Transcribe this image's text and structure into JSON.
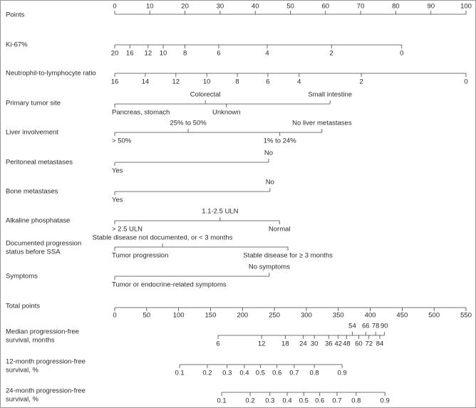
{
  "nomogram": {
    "points_axis": {
      "label": "Points",
      "lim": [
        0,
        100
      ],
      "ticks": [
        0,
        10,
        20,
        30,
        40,
        50,
        60,
        70,
        80,
        90,
        100
      ]
    },
    "rows": [
      {
        "label": [
          "Ki-67%"
        ],
        "ticks": [
          {
            "points": 0,
            "label": "20",
            "side": "below"
          },
          {
            "points": 4.3,
            "label": "16",
            "side": "below"
          },
          {
            "points": 9.5,
            "label": "12",
            "side": "below"
          },
          {
            "points": 13.8,
            "label": "10",
            "side": "below"
          },
          {
            "points": 20,
            "label": "8",
            "side": "below"
          },
          {
            "points": 29.6,
            "label": "6",
            "side": "below"
          },
          {
            "points": 43.4,
            "label": "4",
            "side": "below"
          },
          {
            "points": 61.7,
            "label": "2",
            "side": "below"
          },
          {
            "points": 81.7,
            "label": "0",
            "side": "below"
          }
        ]
      },
      {
        "label": [
          "Neutrophil-to-lymphocyte ratio"
        ],
        "ticks": [
          {
            "points": 0,
            "label": "16",
            "side": "below"
          },
          {
            "points": 8.7,
            "label": "14",
            "side": "below"
          },
          {
            "points": 17.4,
            "label": "12",
            "side": "below"
          },
          {
            "points": 26.2,
            "label": "10",
            "side": "below"
          },
          {
            "points": 34.9,
            "label": "8",
            "side": "below"
          },
          {
            "points": 43.6,
            "label": "6",
            "side": "below"
          },
          {
            "points": 52.5,
            "label": "4",
            "side": "below"
          },
          {
            "points": 70.2,
            "label": "2",
            "side": "below"
          },
          {
            "points": 100,
            "label": "0",
            "side": "below"
          }
        ]
      },
      {
        "label": [
          "Primary tumor site"
        ],
        "ticks": [
          {
            "points": 0,
            "label": "Pancreas, stomach",
            "side": "below"
          },
          {
            "points": 25.8,
            "label": "Colorectal",
            "side": "above"
          },
          {
            "points": 31.8,
            "label": "Unknown",
            "side": "below"
          },
          {
            "points": 61.3,
            "label": "Small intestine",
            "side": "above"
          }
        ]
      },
      {
        "label": [
          "Liver involvement"
        ],
        "ticks": [
          {
            "points": 0,
            "label": "> 50%",
            "side": "below"
          },
          {
            "points": 20.9,
            "label": "25% to 50%",
            "side": "above"
          },
          {
            "points": 47,
            "label": "1% to 24%",
            "side": "below"
          },
          {
            "points": 59,
            "label": "No liver metastases",
            "side": "above"
          }
        ]
      },
      {
        "label": [
          "Peritoneal metastases"
        ],
        "ticks": [
          {
            "points": 0,
            "label": "Yes",
            "side": "below"
          },
          {
            "points": 43.8,
            "label": "No",
            "side": "above"
          }
        ]
      },
      {
        "label": [
          "Bone metastases"
        ],
        "ticks": [
          {
            "points": 0,
            "label": "Yes",
            "side": "below"
          },
          {
            "points": 44.2,
            "label": "No",
            "side": "above"
          }
        ]
      },
      {
        "label": [
          "Alkaline phosphatase"
        ],
        "ticks": [
          {
            "points": 0,
            "label": "> 2.5 ULN",
            "side": "below"
          },
          {
            "points": 30,
            "label": "1.1-2.5 ULN",
            "side": "above"
          },
          {
            "points": 46.9,
            "label": "Normal",
            "side": "below"
          }
        ]
      },
      {
        "label": [
          "Documented progression",
          "status before SSA"
        ],
        "ticks": [
          {
            "points": 0,
            "label": "Tumor progression",
            "side": "below"
          },
          {
            "points": 13.6,
            "label": "Stable disease not documented, or < 3 months",
            "side": "above"
          },
          {
            "points": 49.3,
            "label": "Stable disease for ≥ 3 months",
            "side": "below"
          }
        ]
      },
      {
        "label": [
          "Symptoms"
        ],
        "ticks": [
          {
            "points": 0,
            "label": "Tumor or endocrine-related symptoms",
            "side": "below"
          },
          {
            "points": 44,
            "label": "No symptoms",
            "side": "above"
          }
        ]
      }
    ],
    "total_axis": {
      "label": "Total points",
      "lim": [
        0,
        550
      ],
      "ticks": [
        0,
        50,
        100,
        150,
        200,
        250,
        300,
        350,
        400,
        450,
        500,
        550
      ]
    },
    "outcomes": [
      {
        "label": [
          "Median progression-free",
          "survival, months"
        ],
        "ticks": [
          {
            "total": 161.8,
            "label": "6",
            "side": "below"
          },
          {
            "total": 230,
            "label": "12",
            "side": "below"
          },
          {
            "total": 267,
            "label": "18",
            "side": "below"
          },
          {
            "total": 295,
            "label": "24",
            "side": "below"
          },
          {
            "total": 312.5,
            "label": "30",
            "side": "below"
          },
          {
            "total": 335,
            "label": "36",
            "side": "below"
          },
          {
            "total": 350,
            "label": "42",
            "side": "below"
          },
          {
            "total": 363,
            "label": "48",
            "side": "below"
          },
          {
            "total": 372,
            "label": "54",
            "side": "above"
          },
          {
            "total": 382,
            "label": "60",
            "side": "below"
          },
          {
            "total": 393,
            "label": "66",
            "side": "above"
          },
          {
            "total": 398,
            "label": "72",
            "side": "below"
          },
          {
            "total": 408.5,
            "label": "78",
            "side": "above"
          },
          {
            "total": 415,
            "label": "84",
            "side": "below"
          },
          {
            "total": 422,
            "label": "90",
            "side": "above"
          }
        ]
      },
      {
        "label": [
          "12-month progression-free",
          "survival, %"
        ],
        "ticks": [
          {
            "total": 101.6,
            "label": "0.1",
            "side": "below"
          },
          {
            "total": 145,
            "label": "0.2",
            "side": "below"
          },
          {
            "total": 176,
            "label": "0.3",
            "side": "below"
          },
          {
            "total": 203,
            "label": "0.4",
            "side": "below"
          },
          {
            "total": 228,
            "label": "0.5",
            "side": "below"
          },
          {
            "total": 254,
            "label": "0.6",
            "side": "below"
          },
          {
            "total": 281,
            "label": "0.7",
            "side": "below"
          },
          {
            "total": 312.5,
            "label": "0.8",
            "side": "below"
          },
          {
            "total": 356,
            "label": "0.9",
            "side": "below"
          }
        ]
      },
      {
        "label": [
          "24-month progression-free",
          "survival, %"
        ],
        "ticks": [
          {
            "total": 167.4,
            "label": "0.1",
            "side": "below"
          },
          {
            "total": 212,
            "label": "0.2",
            "side": "below"
          },
          {
            "total": 243,
            "label": "0.3",
            "side": "below"
          },
          {
            "total": 270,
            "label": "0.4",
            "side": "below"
          },
          {
            "total": 296,
            "label": "0.5",
            "side": "below"
          },
          {
            "total": 321,
            "label": "0.6",
            "side": "below"
          },
          {
            "total": 348,
            "label": "0.7",
            "side": "below"
          },
          {
            "total": 378,
            "label": "0.8",
            "side": "below"
          },
          {
            "total": 423,
            "label": "0.9",
            "side": "below"
          }
        ]
      }
    ]
  }
}
